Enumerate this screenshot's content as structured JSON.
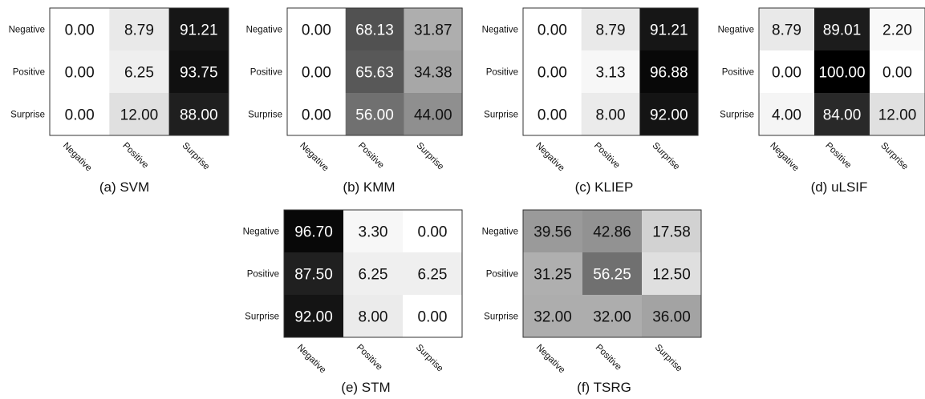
{
  "chart_data": [
    {
      "type": "heatmap",
      "caption": "(a) SVM",
      "row_labels": [
        "Negative",
        "Positive",
        "Surprise"
      ],
      "col_labels": [
        "Negative",
        "Positive",
        "Surprise"
      ],
      "values": [
        [
          0.0,
          8.79,
          91.21
        ],
        [
          0.0,
          6.25,
          93.75
        ],
        [
          0.0,
          12.0,
          88.0
        ]
      ],
      "display": [
        [
          "0.00",
          "8.79",
          "91.21"
        ],
        [
          "0.00",
          "6.25",
          "93.75"
        ],
        [
          "0.00",
          "12.00",
          "88.00"
        ]
      ]
    },
    {
      "type": "heatmap",
      "caption": "(b) KMM",
      "row_labels": [
        "Negative",
        "Positive",
        "Surprise"
      ],
      "col_labels": [
        "Negative",
        "Positive",
        "Surprise"
      ],
      "values": [
        [
          0.0,
          68.13,
          31.87
        ],
        [
          0.0,
          65.63,
          34.38
        ],
        [
          0.0,
          56.0,
          44.0
        ]
      ],
      "display": [
        [
          "0.00",
          "68.13",
          "31.87"
        ],
        [
          "0.00",
          "65.63",
          "34.38"
        ],
        [
          "0.00",
          "56.00",
          "44.00"
        ]
      ]
    },
    {
      "type": "heatmap",
      "caption": "(c) KLIEP",
      "row_labels": [
        "Negative",
        "Positive",
        "Surprise"
      ],
      "col_labels": [
        "Negative",
        "Positive",
        "Surprise"
      ],
      "values": [
        [
          0.0,
          8.79,
          91.21
        ],
        [
          0.0,
          3.13,
          96.88
        ],
        [
          0.0,
          8.0,
          92.0
        ]
      ],
      "display": [
        [
          "0.00",
          "8.79",
          "91.21"
        ],
        [
          "0.00",
          "3.13",
          "96.88"
        ],
        [
          "0.00",
          "8.00",
          "92.00"
        ]
      ]
    },
    {
      "type": "heatmap",
      "caption": "(d) uLSIF",
      "row_labels": [
        "Negative",
        "Positive",
        "Surprise"
      ],
      "col_labels": [
        "Negative",
        "Positive",
        "Surprise"
      ],
      "values": [
        [
          8.79,
          89.01,
          2.2
        ],
        [
          0.0,
          100.0,
          0.0
        ],
        [
          4.0,
          84.0,
          12.0
        ]
      ],
      "display": [
        [
          "8.79",
          "89.01",
          "2.20"
        ],
        [
          "0.00",
          "100.00",
          "0.00"
        ],
        [
          "4.00",
          "84.00",
          "12.00"
        ]
      ]
    },
    {
      "type": "heatmap",
      "caption": "(e) STM",
      "row_labels": [
        "Negative",
        "Positive",
        "Surprise"
      ],
      "col_labels": [
        "Negative",
        "Positive",
        "Surprise"
      ],
      "values": [
        [
          96.7,
          3.3,
          0.0
        ],
        [
          87.5,
          6.25,
          6.25
        ],
        [
          92.0,
          8.0,
          0.0
        ]
      ],
      "display": [
        [
          "96.70",
          "3.30",
          "0.00"
        ],
        [
          "87.50",
          "6.25",
          "6.25"
        ],
        [
          "92.00",
          "8.00",
          "0.00"
        ]
      ]
    },
    {
      "type": "heatmap",
      "caption": "(f) TSRG",
      "row_labels": [
        "Negative",
        "Positive",
        "Surprise"
      ],
      "col_labels": [
        "Negative",
        "Positive",
        "Surprise"
      ],
      "values": [
        [
          39.56,
          42.86,
          17.58
        ],
        [
          31.25,
          56.25,
          12.5
        ],
        [
          32.0,
          32.0,
          36.0
        ]
      ],
      "display": [
        [
          "39.56",
          "42.86",
          "17.58"
        ],
        [
          "31.25",
          "56.25",
          "12.50"
        ],
        [
          "32.00",
          "32.00",
          "36.00"
        ]
      ]
    }
  ]
}
